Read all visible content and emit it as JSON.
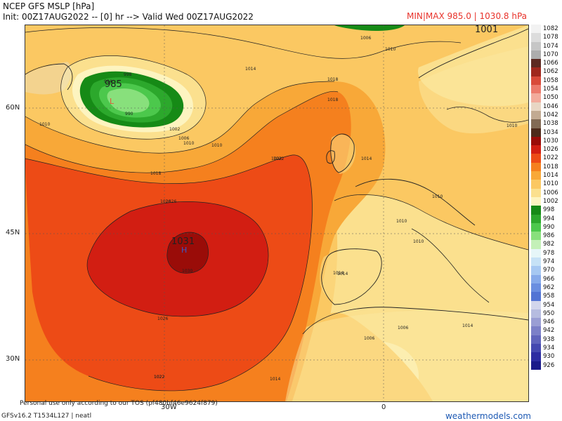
{
  "header": {
    "title": "NCEP GFS MSLP [hPa]",
    "subtitle": "Init: 00Z17AUG2022 -- [0] hr --> Valid Wed 00Z17AUG2022",
    "minmax": "MIN|MAX 985.0 | 1030.8 hPa"
  },
  "map": {
    "lat_labels": [
      "60N",
      "45N",
      "30N"
    ],
    "lon_labels": [
      "30W",
      "0"
    ],
    "centers": {
      "low_value": "985",
      "low_letter": "L",
      "high_value": "1031",
      "high_letter": "H",
      "north_value": "1001"
    },
    "contour_labels": [
      "1006",
      "1010",
      "1014",
      "1018",
      "1022",
      "1026",
      "1002",
      "998",
      "994",
      "990",
      "1010",
      "1006",
      "1018",
      "1022",
      "1026",
      "1022",
      "1018",
      "1014",
      "1010",
      "1014",
      "1010",
      "1010",
      "1010",
      "1006",
      "1014",
      "1006",
      "1010",
      "1010",
      "1014",
      "1026",
      "1022",
      "1030",
      "1014"
    ]
  },
  "legend": [
    {
      "value": "1082",
      "color": "#f2f2f2"
    },
    {
      "value": "1078",
      "color": "#dcdcdc"
    },
    {
      "value": "1074",
      "color": "#c6c6c6"
    },
    {
      "value": "1070",
      "color": "#adadad"
    },
    {
      "value": "1066",
      "color": "#5c2a22"
    },
    {
      "value": "1062",
      "color": "#a0281e"
    },
    {
      "value": "1058",
      "color": "#d94a3a"
    },
    {
      "value": "1054",
      "color": "#ec7a6c"
    },
    {
      "value": "1050",
      "color": "#f2ab9c"
    },
    {
      "value": "1046",
      "color": "#e8d6c4"
    },
    {
      "value": "1042",
      "color": "#c2aa92"
    },
    {
      "value": "1038",
      "color": "#826a54"
    },
    {
      "value": "1034",
      "color": "#4e2a1a"
    },
    {
      "value": "1030",
      "color": "#9a0c08"
    },
    {
      "value": "1026",
      "color": "#d21e12"
    },
    {
      "value": "1022",
      "color": "#ed4b16"
    },
    {
      "value": "1018",
      "color": "#f5801e"
    },
    {
      "value": "1014",
      "color": "#f8a838"
    },
    {
      "value": "1010",
      "color": "#fbc862"
    },
    {
      "value": "1006",
      "color": "#fbe08e"
    },
    {
      "value": "1002",
      "color": "#fdf4c0"
    },
    {
      "value": "998",
      "color": "#168a16"
    },
    {
      "value": "994",
      "color": "#2ca82c"
    },
    {
      "value": "990",
      "color": "#4cc84c"
    },
    {
      "value": "986",
      "color": "#88e07c"
    },
    {
      "value": "982",
      "color": "#c4f0b8"
    },
    {
      "value": "978",
      "color": "#e6f6f8"
    },
    {
      "value": "974",
      "color": "#c6e2f6"
    },
    {
      "value": "970",
      "color": "#a6c8f2"
    },
    {
      "value": "966",
      "color": "#86aaea"
    },
    {
      "value": "962",
      "color": "#6a8ee0"
    },
    {
      "value": "958",
      "color": "#5274d4"
    },
    {
      "value": "954",
      "color": "#d2d6ec"
    },
    {
      "value": "950",
      "color": "#b6bce0"
    },
    {
      "value": "946",
      "color": "#9a9ed4"
    },
    {
      "value": "942",
      "color": "#7c80c8"
    },
    {
      "value": "938",
      "color": "#6064bc"
    },
    {
      "value": "934",
      "color": "#4448b0"
    },
    {
      "value": "930",
      "color": "#2c2ca2"
    },
    {
      "value": "926",
      "color": "#1a1a8a"
    }
  ],
  "footer": {
    "terms": "Personal use only according to our TOS (pf480bf46e9624f879)",
    "model": "GFSv16.2 T1534L127 | neatl",
    "brand": "weathermodels.com"
  }
}
